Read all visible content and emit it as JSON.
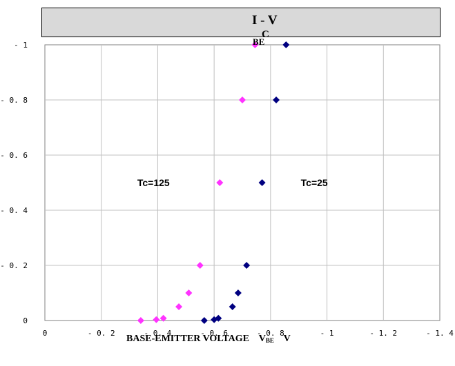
{
  "chart_data": {
    "type": "scatter",
    "title": "I - V",
    "title_sub": "C",
    "title_sub2": "BE",
    "xlabel": "BASE-EMITTER VOLTAGE    V",
    "xlabel_sub": "BE",
    "xlabel_unit": "V",
    "xlim": [
      0,
      1.4
    ],
    "ylim": [
      0,
      1
    ],
    "grid": true,
    "x_ticks": [
      0,
      0.2,
      0.4,
      0.6,
      0.8,
      1,
      1.2,
      1.4
    ],
    "x_tick_labels": [
      "0",
      "- 0. 2",
      "- 0. 4",
      "- 0. 6",
      "- 0. 8",
      "- 1",
      "- 1. 2",
      "- 1. 4"
    ],
    "y_ticks": [
      0,
      0.2,
      0.4,
      0.6,
      0.8,
      1
    ],
    "y_tick_labels": [
      "0",
      "- 0. 2",
      "- 0. 4",
      "- 0. 6",
      "- 0. 8",
      "- 1"
    ],
    "series": [
      {
        "name": "Tc=125",
        "color": "#ff33ff",
        "marker": "diamond",
        "points": [
          {
            "x": 0.34,
            "y": 0.0
          },
          {
            "x": 0.395,
            "y": 0.003
          },
          {
            "x": 0.42,
            "y": 0.008
          },
          {
            "x": 0.475,
            "y": 0.05
          },
          {
            "x": 0.51,
            "y": 0.1
          },
          {
            "x": 0.55,
            "y": 0.2
          },
          {
            "x": 0.62,
            "y": 0.5
          },
          {
            "x": 0.7,
            "y": 0.8
          },
          {
            "x": 0.745,
            "y": 1.0
          }
        ]
      },
      {
        "name": "Tc=25",
        "color": "#000080",
        "marker": "diamond",
        "points": [
          {
            "x": 0.565,
            "y": 0.0
          },
          {
            "x": 0.6,
            "y": 0.003
          },
          {
            "x": 0.615,
            "y": 0.008
          },
          {
            "x": 0.665,
            "y": 0.05
          },
          {
            "x": 0.685,
            "y": 0.1
          },
          {
            "x": 0.715,
            "y": 0.2
          },
          {
            "x": 0.77,
            "y": 0.5
          },
          {
            "x": 0.82,
            "y": 0.8
          },
          {
            "x": 0.855,
            "y": 1.0
          }
        ]
      }
    ],
    "annotations": [
      {
        "text": "Tc=125",
        "x": 0.385,
        "y": 0.5
      },
      {
        "text": "Tc=25",
        "x": 0.955,
        "y": 0.5
      }
    ]
  }
}
